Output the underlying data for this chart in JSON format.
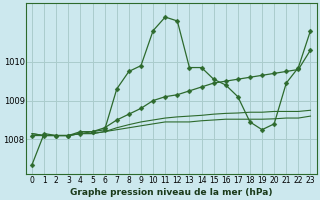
{
  "title": "Graphe pression niveau de la mer (hPa)",
  "bg_color": "#cce8ee",
  "grid_color": "#aacccc",
  "line_color": "#2d6a2d",
  "xlim": [
    -0.5,
    23.5
  ],
  "ylim": [
    1007.1,
    1011.5
  ],
  "yticks": [
    1008,
    1009,
    1010
  ],
  "xticks": [
    0,
    1,
    2,
    3,
    4,
    5,
    6,
    7,
    8,
    9,
    10,
    11,
    12,
    13,
    14,
    15,
    16,
    17,
    18,
    19,
    20,
    21,
    22,
    23
  ],
  "series": [
    {
      "y": [
        1007.35,
        1008.15,
        1008.1,
        1008.1,
        1008.2,
        1008.2,
        1008.25,
        1009.3,
        1009.75,
        1009.9,
        1010.8,
        1011.15,
        1011.05,
        1009.85,
        1009.85,
        1009.55,
        1009.4,
        1009.1,
        1008.45,
        1008.25,
        1008.4,
        1009.45,
        1009.85,
        1010.8
      ],
      "marker": "D",
      "markersize": 2.5,
      "linewidth": 0.9
    },
    {
      "y": [
        1008.1,
        1008.1,
        1008.1,
        1008.1,
        1008.15,
        1008.2,
        1008.3,
        1008.5,
        1008.65,
        1008.8,
        1009.0,
        1009.1,
        1009.15,
        1009.25,
        1009.35,
        1009.45,
        1009.5,
        1009.55,
        1009.6,
        1009.65,
        1009.7,
        1009.75,
        1009.8,
        1010.3
      ],
      "marker": "D",
      "markersize": 2.5,
      "linewidth": 0.9
    },
    {
      "y": [
        1008.15,
        1008.1,
        1008.1,
        1008.1,
        1008.15,
        1008.15,
        1008.2,
        1008.25,
        1008.3,
        1008.35,
        1008.4,
        1008.45,
        1008.45,
        1008.45,
        1008.48,
        1008.5,
        1008.52,
        1008.52,
        1008.52,
        1008.52,
        1008.53,
        1008.55,
        1008.55,
        1008.6
      ],
      "marker": null,
      "markersize": 0,
      "linewidth": 0.8
    },
    {
      "y": [
        1008.15,
        1008.1,
        1008.1,
        1008.1,
        1008.15,
        1008.15,
        1008.2,
        1008.3,
        1008.38,
        1008.45,
        1008.5,
        1008.55,
        1008.58,
        1008.6,
        1008.62,
        1008.65,
        1008.67,
        1008.68,
        1008.7,
        1008.7,
        1008.72,
        1008.72,
        1008.72,
        1008.75
      ],
      "marker": null,
      "markersize": 0,
      "linewidth": 0.8
    }
  ],
  "xlabel_fontsize": 6.5,
  "xlabel_fontweight": "bold",
  "tick_labelsize": 5.5,
  "ytick_labelsize": 6,
  "xlabel_color": "#1a3a1a"
}
